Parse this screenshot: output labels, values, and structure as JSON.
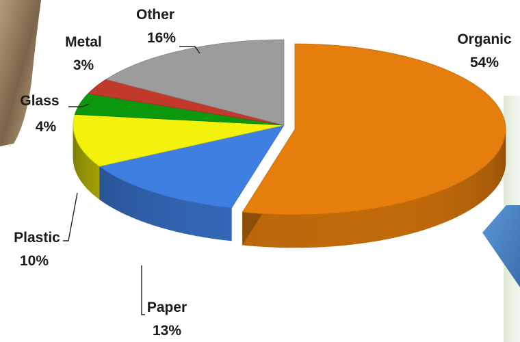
{
  "chart_data": {
    "type": "pie",
    "style": "3d-exploded-tilted",
    "slices": [
      {
        "name": "Organic",
        "value": 54,
        "label": "54%",
        "color": "#E57E0C"
      },
      {
        "name": "Paper",
        "value": 13,
        "label": "13%",
        "color": "#3F7FE2"
      },
      {
        "name": "Plastic",
        "value": 10,
        "label": "10%",
        "color": "#F2F20A"
      },
      {
        "name": "Glass",
        "value": 4,
        "label": "4%",
        "color": "#0C980C"
      },
      {
        "name": "Metal",
        "value": 3,
        "label": "3%",
        "color": "#C0392B"
      },
      {
        "name": "Other",
        "value": 16,
        "label": "16%",
        "color": "#9C9C9C"
      }
    ],
    "legend": "none",
    "data_labels": "outside-with-leader-lines"
  },
  "decor": {
    "left_photo_edge": "cropped-photo-fragment",
    "right_arrow_shape": "blue-arrow-fragment",
    "colors": {
      "photo": "#9a8466",
      "arrow": "#4a86c8",
      "panel": "#e8efe0"
    }
  }
}
